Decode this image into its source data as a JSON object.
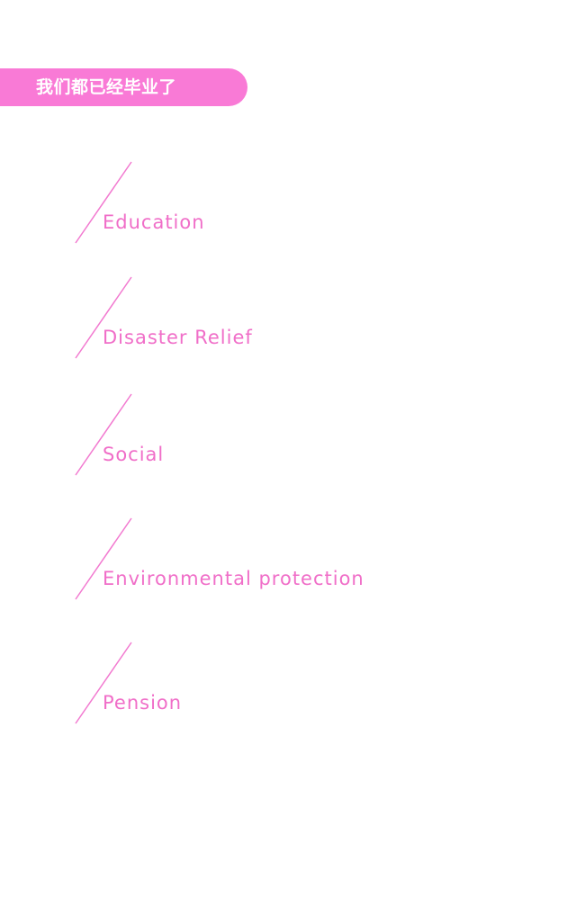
{
  "header": {
    "title": "我们都已经毕业了"
  },
  "colors": {
    "accent": "#f97ad6",
    "label": "#f06ec8",
    "background": "#ffffff"
  },
  "categories": [
    {
      "label": "Education"
    },
    {
      "label": "Disaster Relief"
    },
    {
      "label": "Social"
    },
    {
      "label": "Environmental protection"
    },
    {
      "label": "Pension"
    }
  ]
}
